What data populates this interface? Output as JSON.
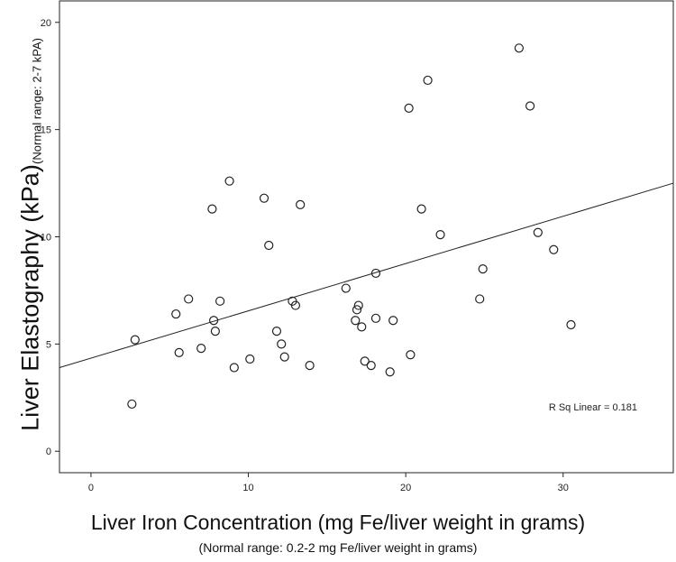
{
  "chart_data": {
    "type": "scatter",
    "title": "",
    "xlabel": "Liver Iron Concentration (mg Fe/liver weight in grams)",
    "xlabel_note": "(Normal range: 0.2-2 mg Fe/liver weight in grams)",
    "ylabel": "Liver Elastography (kPa)",
    "ylabel_note": "(Normal range: 2-7 kPA)",
    "xlim": [
      -2,
      37
    ],
    "ylim": [
      -1,
      21
    ],
    "xticks": [
      0,
      10,
      20,
      30
    ],
    "yticks": [
      0,
      5,
      10,
      15,
      20
    ],
    "grid": false,
    "annotation": "R Sq Linear = 0.181",
    "fit_line": {
      "x": [
        -2,
        37
      ],
      "y": [
        3.9,
        12.5
      ]
    },
    "points": [
      {
        "x": 2.6,
        "y": 2.2
      },
      {
        "x": 2.8,
        "y": 5.2
      },
      {
        "x": 5.4,
        "y": 6.4
      },
      {
        "x": 5.6,
        "y": 4.6
      },
      {
        "x": 6.2,
        "y": 7.1
      },
      {
        "x": 7.0,
        "y": 4.8
      },
      {
        "x": 7.7,
        "y": 11.3
      },
      {
        "x": 7.8,
        "y": 6.1
      },
      {
        "x": 7.9,
        "y": 5.6
      },
      {
        "x": 8.2,
        "y": 7.0
      },
      {
        "x": 8.8,
        "y": 12.6
      },
      {
        "x": 9.1,
        "y": 3.9
      },
      {
        "x": 10.1,
        "y": 4.3
      },
      {
        "x": 11.0,
        "y": 11.8
      },
      {
        "x": 11.3,
        "y": 9.6
      },
      {
        "x": 11.8,
        "y": 5.6
      },
      {
        "x": 12.1,
        "y": 5.0
      },
      {
        "x": 12.3,
        "y": 4.4
      },
      {
        "x": 12.8,
        "y": 7.0
      },
      {
        "x": 13.0,
        "y": 6.8
      },
      {
        "x": 13.3,
        "y": 11.5
      },
      {
        "x": 13.9,
        "y": 4.0
      },
      {
        "x": 16.2,
        "y": 7.6
      },
      {
        "x": 16.8,
        "y": 6.1
      },
      {
        "x": 16.9,
        "y": 6.6
      },
      {
        "x": 17.0,
        "y": 6.8
      },
      {
        "x": 17.2,
        "y": 5.8
      },
      {
        "x": 17.4,
        "y": 4.2
      },
      {
        "x": 17.8,
        "y": 4.0
      },
      {
        "x": 18.1,
        "y": 8.3
      },
      {
        "x": 18.1,
        "y": 6.2
      },
      {
        "x": 19.0,
        "y": 3.7
      },
      {
        "x": 19.2,
        "y": 6.1
      },
      {
        "x": 20.2,
        "y": 16.0
      },
      {
        "x": 20.3,
        "y": 4.5
      },
      {
        "x": 21.0,
        "y": 11.3
      },
      {
        "x": 21.4,
        "y": 17.3
      },
      {
        "x": 22.2,
        "y": 10.1
      },
      {
        "x": 24.7,
        "y": 7.1
      },
      {
        "x": 24.9,
        "y": 8.5
      },
      {
        "x": 27.2,
        "y": 18.8
      },
      {
        "x": 27.9,
        "y": 16.1
      },
      {
        "x": 28.4,
        "y": 10.2
      },
      {
        "x": 29.4,
        "y": 9.4
      },
      {
        "x": 30.5,
        "y": 5.9
      }
    ]
  }
}
